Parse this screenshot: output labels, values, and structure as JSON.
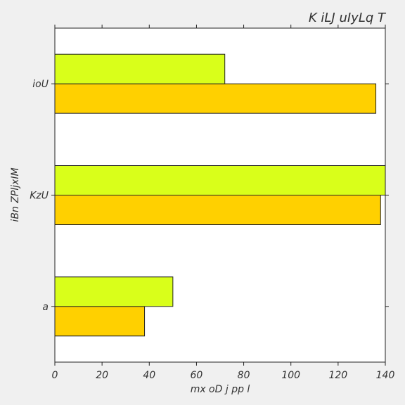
{
  "chart_data": {
    "type": "bar",
    "orientation": "horizontal",
    "title": "K iLJ uIyLq T",
    "xlabel": "mx oD  j pp l",
    "ylabel": "iBn ZPljxIM",
    "categories": [
      "a",
      "KzU",
      "ioU"
    ],
    "xlim": [
      0,
      140
    ],
    "xticks": [
      0,
      20,
      40,
      60,
      80,
      100,
      120,
      140
    ],
    "grid": false,
    "series": [
      {
        "color": "#ffd000",
        "values": [
          38,
          138,
          136
        ]
      },
      {
        "color": "#d9ff1a",
        "values": [
          50,
          140,
          72
        ]
      }
    ]
  }
}
